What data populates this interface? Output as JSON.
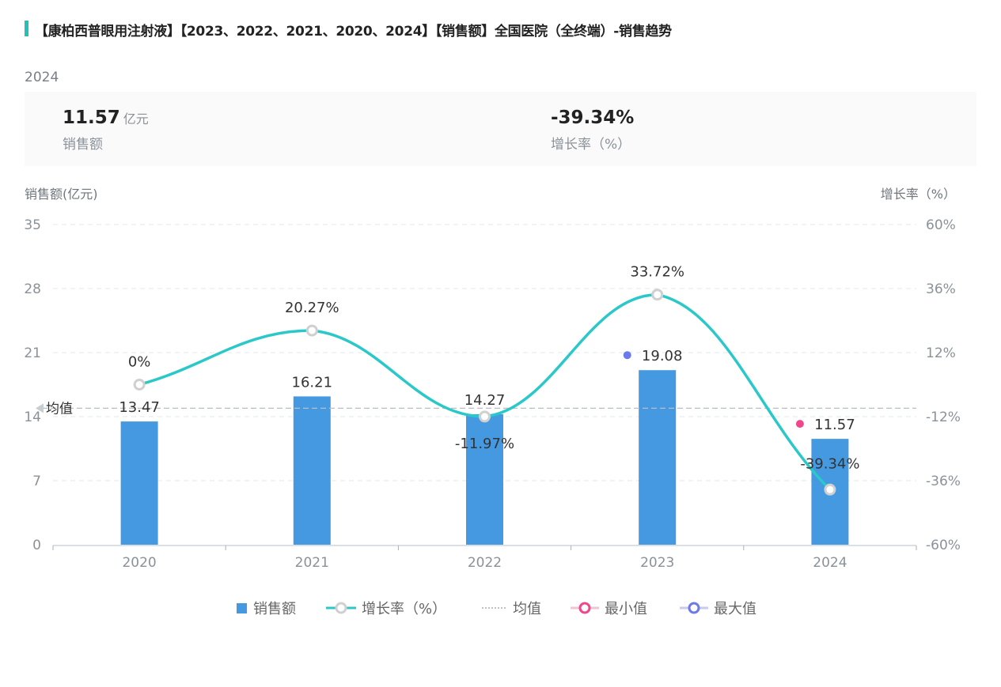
{
  "title": "【康柏西普眼用注射液】【2023、2022、2021、2020、2024】【销售额】全国医院（全终端）-销售趋势",
  "summary": {
    "year": "2024",
    "sales_value": "11.57",
    "sales_unit": "亿元",
    "sales_label": "销售额",
    "growth_value": "-39.34%",
    "growth_label": "增长率（%）"
  },
  "colors": {
    "accent": "#26c0b6",
    "bar": "#4599e0",
    "line": "#2ac8c8",
    "marker": "#d0d0d0",
    "min": "#f0468c",
    "max": "#6b79ea",
    "axis_text": "#8a9299",
    "grid": "#e3e8ec",
    "mean": "#b9bec4"
  },
  "chart_data": {
    "type": "bar+line",
    "title": "【康柏西普眼用注射液】【2023、2022、2021、2020、2024】【销售额】全国医院（全终端）-销售趋势",
    "categories": [
      "2020",
      "2021",
      "2022",
      "2023",
      "2024"
    ],
    "left_axis": {
      "label": "销售额(亿元)",
      "ylim": [
        0,
        35
      ],
      "ticks": [
        "0",
        "7",
        "14",
        "21",
        "28",
        "35"
      ],
      "tick_values": [
        0,
        7,
        14,
        21,
        28,
        35
      ]
    },
    "right_axis": {
      "label": "增长率（%）",
      "ylim": [
        -60,
        60
      ],
      "ticks": [
        "-60%",
        "-36%",
        "-12%",
        "12%",
        "36%",
        "60%"
      ],
      "tick_values": [
        -60,
        -36,
        -12,
        12,
        36,
        60
      ]
    },
    "series": [
      {
        "name": "销售额",
        "type": "bar",
        "axis": "left",
        "values": [
          13.47,
          16.21,
          14.27,
          19.08,
          11.57
        ],
        "labels": [
          "13.47",
          "16.21",
          "14.27",
          "19.08",
          "11.57"
        ]
      },
      {
        "name": "增长率（%）",
        "type": "line",
        "smooth": true,
        "axis": "right",
        "values": [
          0,
          20.27,
          -11.97,
          33.72,
          -39.34
        ],
        "labels": [
          "0%",
          "20.27%",
          "-11.97%",
          "33.72%",
          "-39.34%"
        ]
      }
    ],
    "mean": {
      "label": "均值",
      "value": 14.92
    },
    "min_point": {
      "label": "最小值",
      "category": "2024",
      "value": 11.57
    },
    "max_point": {
      "label": "最大值",
      "category": "2023",
      "value": 19.08
    },
    "grid": true,
    "legend": {
      "position": "bottom",
      "items": [
        "销售额",
        "增长率（%）",
        "均值",
        "最小值",
        "最大值"
      ]
    }
  }
}
